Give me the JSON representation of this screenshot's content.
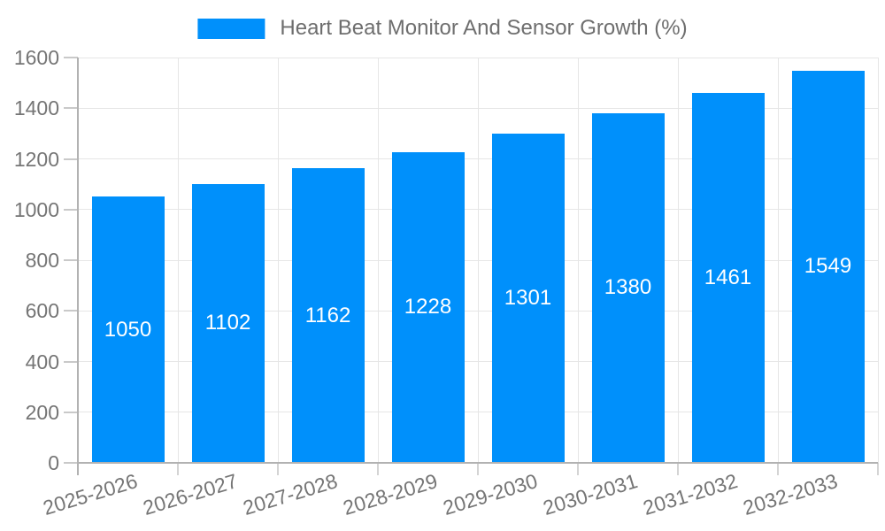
{
  "chart_data": {
    "type": "bar",
    "title": "",
    "legend": {
      "label": "Heart Beat Monitor And Sensor Growth (%)",
      "position": "top"
    },
    "categories": [
      "2025-2026",
      "2026-2027",
      "2027-2028",
      "2028-2029",
      "2029-2030",
      "2030-2031",
      "2031-2032",
      "2032-2033"
    ],
    "values": [
      1050,
      1102,
      1162,
      1228,
      1301,
      1380,
      1461,
      1549
    ],
    "bar_value_labels": [
      "1050",
      "1102",
      "1162",
      "1228",
      "1301",
      "1380",
      "1461",
      "1549"
    ],
    "xlabel": "",
    "ylabel": "",
    "ylim": [
      0,
      1600
    ],
    "yticks": [
      0,
      200,
      400,
      600,
      800,
      1000,
      1200,
      1400,
      1600
    ],
    "grid": true,
    "legend_position": "top-center",
    "colors": {
      "bar": "#0090FB",
      "grid": "#e6e6e6",
      "axis": "#b2b2b2",
      "axis_text": "#757575",
      "legend_text": "#6e6e6e",
      "bar_label_text": "#ffffff",
      "background": "#ffffff"
    }
  }
}
